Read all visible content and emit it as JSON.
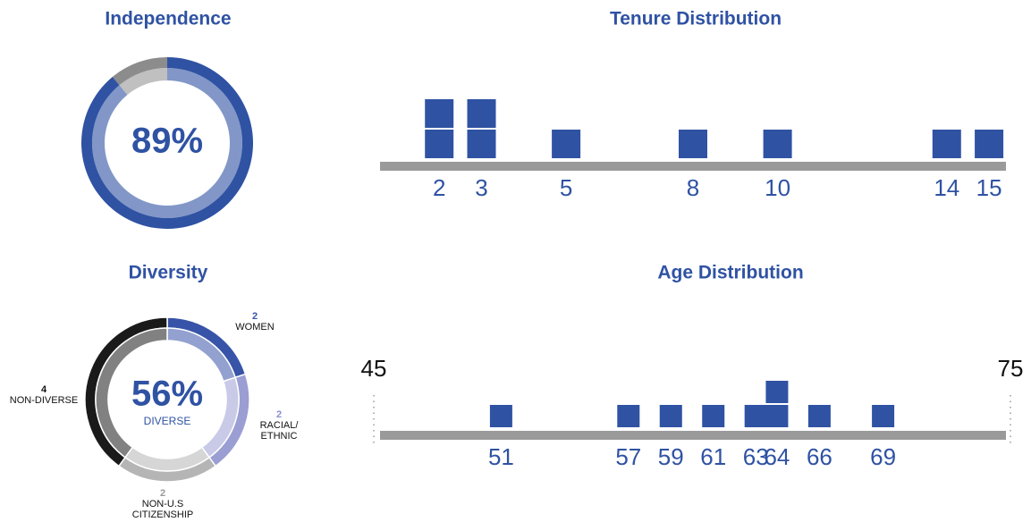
{
  "chart_data": [
    {
      "type": "donut",
      "title": "Independence",
      "values": [
        89
      ],
      "value_labels": [
        "89%"
      ],
      "colors": [
        "#2f52a3",
        "#8c8c8c"
      ]
    },
    {
      "type": "donut",
      "title": "Diversity",
      "categories": [
        "WOMEN",
        "RACIAL/ ETHNIC",
        "NON-U.S CITIZENSHIP",
        "NON-DIVERSE"
      ],
      "values": [
        2,
        2,
        2,
        4
      ],
      "colors": [
        "#3854a8",
        "#9a9ed3",
        "#b5b5b5",
        "#1a1a1a"
      ],
      "value": 56,
      "value_label": "56%",
      "subtitle": "DIVERSE"
    },
    {
      "type": "dot",
      "title": "Tenure Distribution",
      "x": [
        2,
        3,
        5,
        8,
        10,
        14,
        15
      ],
      "values": [
        2,
        2,
        1,
        1,
        1,
        1,
        1
      ],
      "xlim": [
        0.6,
        15.4
      ],
      "color": "#2f52a3"
    },
    {
      "type": "dot",
      "title": "Age Distribution",
      "x": [
        51,
        57,
        59,
        61,
        63,
        64,
        66,
        69
      ],
      "values": [
        1,
        1,
        1,
        1,
        1,
        2,
        1,
        1
      ],
      "xlim": [
        45,
        75
      ],
      "xticks": [
        45,
        75
      ],
      "color": "#2f52a3"
    }
  ]
}
